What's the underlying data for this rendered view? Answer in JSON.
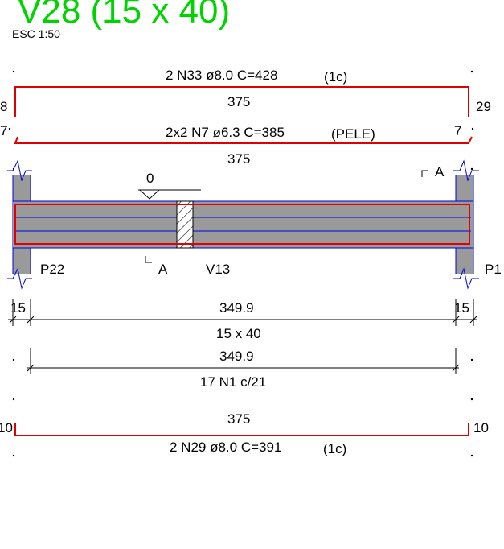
{
  "title": "V28 (15 x 40)",
  "scale": "ESC 1:50",
  "top_bar": {
    "label": "2 N33 ø8.0 C=428",
    "layer": "(1c)",
    "length": "375",
    "left_hook": "8",
    "right_hook": "29"
  },
  "skin_bar": {
    "label": "2x2 N7 ø6.3 C=385",
    "layer": "(PELE)",
    "length": "375",
    "left_hook": "7",
    "right_hook": "7"
  },
  "beam": {
    "level_mark": "0",
    "section_cut": "A",
    "left_support": "P22",
    "right_support": "P1",
    "crossing_beam": "V13"
  },
  "dims": {
    "left_support_width": "15",
    "span": "349.9",
    "right_support_width": "15",
    "section": "15 x 40"
  },
  "stirrups": {
    "span": "349.9",
    "label": "17 N1 c/21"
  },
  "bottom_bar": {
    "length": "375",
    "label": "2 N29 ø8.0 C=391",
    "layer": "(1c)",
    "left_hook": "10",
    "right_hook": "10"
  },
  "colors": {
    "title": "#00d400",
    "rebar": "#e00000",
    "outline": "#0000e0",
    "concrete": "#9a9a9a"
  }
}
